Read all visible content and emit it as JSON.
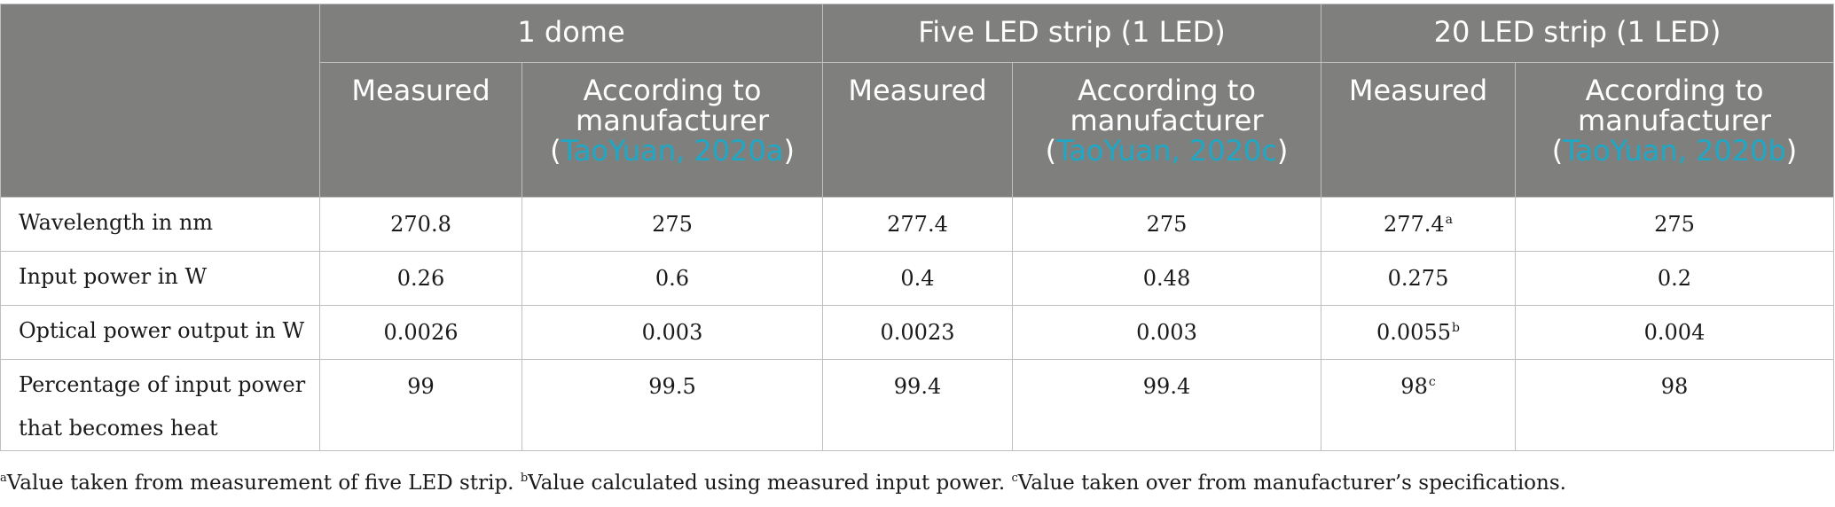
{
  "table": {
    "groups": [
      "1 dome",
      "Five LED strip (1 LED)",
      "20 LED strip (1 LED)"
    ],
    "subheaders": [
      {
        "text": "Measured"
      },
      {
        "text": "According to manufacturer",
        "open": "(",
        "cite": "TaoYuan, 2020a",
        "close": ")"
      },
      {
        "text": "Measured"
      },
      {
        "text": "According to manufacturer",
        "open": "(",
        "cite": "TaoYuan, 2020c",
        "close": ")"
      },
      {
        "text": "Measured"
      },
      {
        "text": "According to manufacturer",
        "open": "(",
        "cite": "TaoYuan, 2020b",
        "close": ")"
      }
    ],
    "rows": [
      {
        "label": "Wavelength in nm",
        "cells": [
          {
            "v": "270.8"
          },
          {
            "v": "275"
          },
          {
            "v": "277.4"
          },
          {
            "v": "275"
          },
          {
            "v": "277.4",
            "sup": "a"
          },
          {
            "v": "275"
          }
        ]
      },
      {
        "label": "Input power in W",
        "cells": [
          {
            "v": "0.26"
          },
          {
            "v": "0.6"
          },
          {
            "v": "0.4"
          },
          {
            "v": "0.48"
          },
          {
            "v": "0.275"
          },
          {
            "v": "0.2"
          }
        ]
      },
      {
        "label": "Optical power output in W",
        "cells": [
          {
            "v": "0.0026"
          },
          {
            "v": "0.003"
          },
          {
            "v": "0.0023"
          },
          {
            "v": "0.003"
          },
          {
            "v": "0.0055",
            "sup": "b"
          },
          {
            "v": "0.004"
          }
        ]
      },
      {
        "label": "Percentage of input power that becomes heat",
        "cells": [
          {
            "v": "99"
          },
          {
            "v": "99.5"
          },
          {
            "v": "99.4"
          },
          {
            "v": "99.4"
          },
          {
            "v": "98",
            "sup": "c"
          },
          {
            "v": "98"
          }
        ]
      }
    ]
  },
  "footnotes": [
    {
      "mark": "a",
      "text": "Value taken from measurement of five LED strip. "
    },
    {
      "mark": "b",
      "text": "Value calculated using measured input power. "
    },
    {
      "mark": "c",
      "text": "Value taken over from manufacturer’s specifications."
    }
  ]
}
